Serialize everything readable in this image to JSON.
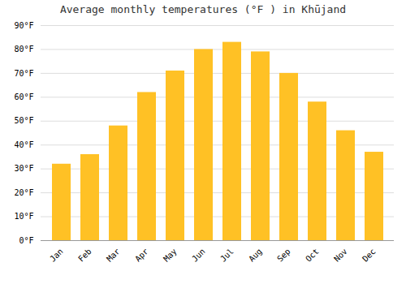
{
  "chart_data": {
    "type": "bar",
    "title": "Average monthly temperatures (°F ) in Khūjand",
    "categories": [
      "Jan",
      "Feb",
      "Mar",
      "Apr",
      "May",
      "Jun",
      "Jul",
      "Aug",
      "Sep",
      "Oct",
      "Nov",
      "Dec"
    ],
    "values": [
      32,
      36,
      48,
      62,
      71,
      80,
      83,
      79,
      70,
      58,
      46,
      37
    ],
    "color": "#FFC125",
    "ylim": [
      0,
      90
    ],
    "yticks": [
      {
        "value": 0,
        "label": "0°F"
      },
      {
        "value": 10,
        "label": "10°F"
      },
      {
        "value": 20,
        "label": "20°F"
      },
      {
        "value": 30,
        "label": "30°F"
      },
      {
        "value": 40,
        "label": "40°F"
      },
      {
        "value": 50,
        "label": "50°F"
      },
      {
        "value": 60,
        "label": "60°F"
      },
      {
        "value": 70,
        "label": "70°F"
      },
      {
        "value": 80,
        "label": "80°F"
      },
      {
        "value": 90,
        "label": "90°F"
      }
    ],
    "grid": true
  }
}
